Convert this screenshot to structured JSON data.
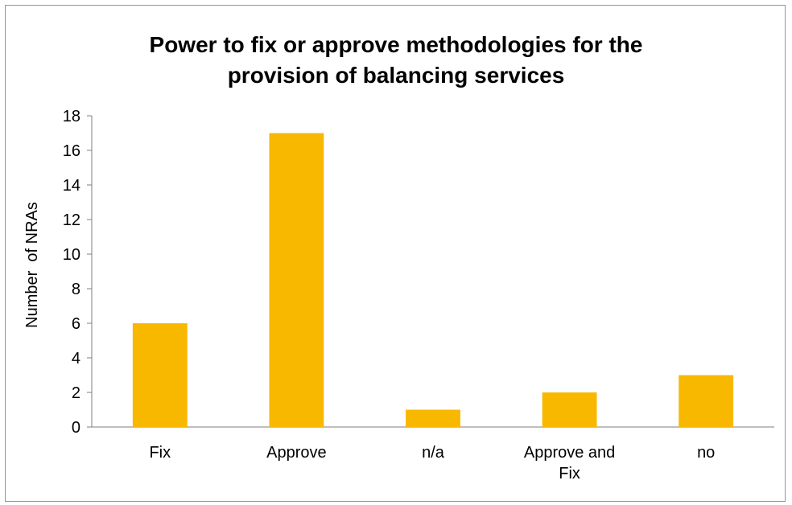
{
  "chart_data": {
    "type": "bar",
    "title_lines": [
      "Power to fix or approve methodologies for the",
      "provision of balancing services"
    ],
    "categories": [
      "Fix",
      "Approve",
      "n/a",
      "Approve and Fix",
      "no"
    ],
    "category_label_lines": [
      [
        "Fix"
      ],
      [
        "Approve"
      ],
      [
        "n/a"
      ],
      [
        "Approve and",
        "Fix"
      ],
      [
        "no"
      ]
    ],
    "values": [
      6,
      17,
      1,
      2,
      3
    ],
    "xlabel": "",
    "ylabel": "Number  of NRAs",
    "ylim": [
      0,
      18
    ],
    "yticks": [
      0,
      2,
      4,
      6,
      8,
      10,
      12,
      14,
      16,
      18
    ],
    "grid": false,
    "legend": "none",
    "bar_color": "#f8b800",
    "axis_color": "#7f7f7f"
  }
}
